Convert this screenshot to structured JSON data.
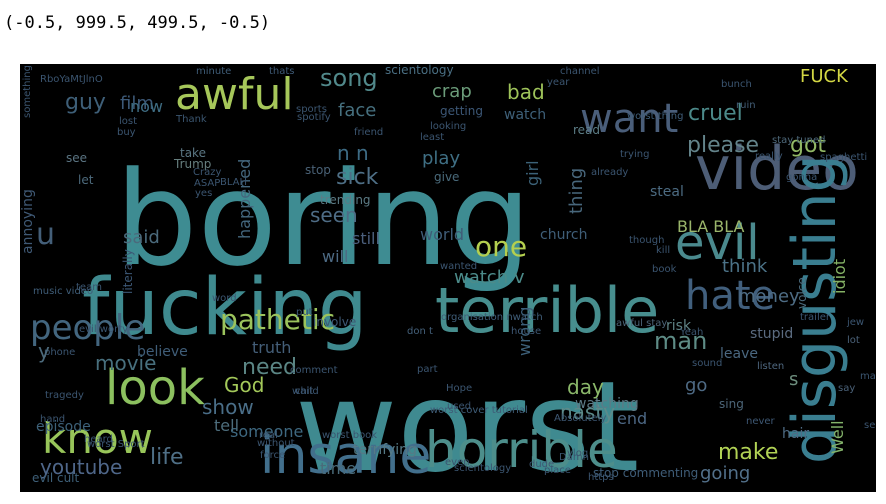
{
  "output": {
    "text": "(-0.5, 999.5, 499.5, -0.5)"
  },
  "wordcloud": {
    "background": "#000000",
    "words": [
      {
        "text": "boring",
        "color": "#3e8c92"
      },
      {
        "text": "worst",
        "color": "#3f8a90"
      },
      {
        "text": "fucking",
        "color": "#3f8a8f"
      },
      {
        "text": "video",
        "color": "#4d5d76"
      },
      {
        "text": "terrible",
        "color": "#478e8e"
      },
      {
        "text": "horrible",
        "color": "#4d8e8b"
      },
      {
        "text": "insane",
        "color": "#426f8c"
      },
      {
        "text": "disgusting",
        "color": "#3a7e90"
      },
      {
        "text": "awful",
        "color": "#a6c75a"
      },
      {
        "text": "look",
        "color": "#8cc05f"
      },
      {
        "text": "know",
        "color": "#98c55a"
      },
      {
        "text": "evil",
        "color": "#4b8a8e"
      },
      {
        "text": "hate",
        "color": "#415f7d"
      },
      {
        "text": "want",
        "color": "#4a5e7a"
      },
      {
        "text": "people",
        "color": "#43667f"
      },
      {
        "text": "pathetic",
        "color": "#9bc35c"
      },
      {
        "text": "one",
        "color": "#b4cf4f"
      },
      {
        "text": "song",
        "color": "#51898b"
      },
      {
        "text": "guy",
        "color": "#3e5f78"
      },
      {
        "text": "film",
        "color": "#3c5876"
      },
      {
        "text": "cruel",
        "color": "#4c8a8a"
      },
      {
        "text": "FUCK",
        "color": "#d3d744"
      },
      {
        "text": "bad",
        "color": "#9ec35a"
      },
      {
        "text": "crap",
        "color": "#6b9b79"
      },
      {
        "text": "face",
        "color": "#46707f"
      },
      {
        "text": "now",
        "color": "#3e6c82"
      },
      {
        "text": "please",
        "color": "#63838a"
      },
      {
        "text": "got",
        "color": "#92b865"
      },
      {
        "text": "sick",
        "color": "#4e6f86"
      },
      {
        "text": "play",
        "color": "#3f6f84"
      },
      {
        "text": "seen",
        "color": "#4e6c85"
      },
      {
        "text": "make",
        "color": "#b1d255"
      },
      {
        "text": "day",
        "color": "#8bb86a"
      },
      {
        "text": "man",
        "color": "#5e8c86"
      },
      {
        "text": "nasty",
        "color": "#5c8a8a"
      },
      {
        "text": "going",
        "color": "#52708a"
      },
      {
        "text": "youtube",
        "color": "#4f678a"
      },
      {
        "text": "life",
        "color": "#4f6f86"
      },
      {
        "text": "need",
        "color": "#5b8685"
      },
      {
        "text": "show",
        "color": "#4a6e88"
      },
      {
        "text": "God",
        "color": "#a3c85a"
      },
      {
        "text": "movie",
        "color": "#48707e"
      },
      {
        "text": "watch v",
        "color": "#4c8b8a"
      },
      {
        "text": "money",
        "color": "#4e6c84"
      },
      {
        "text": "think",
        "color": "#4c7388"
      },
      {
        "text": "thing",
        "color": "#48677c"
      },
      {
        "text": "truth",
        "color": "#445e78"
      },
      {
        "text": "said",
        "color": "#4b6a7c"
      },
      {
        "text": "happened",
        "color": "#44677e"
      },
      {
        "text": "will",
        "color": "#4d6a84"
      },
      {
        "text": "still",
        "color": "#4b5f7c"
      },
      {
        "text": "world",
        "color": "#3f5c77"
      },
      {
        "text": "BLA BLA",
        "color": "#9ab56b"
      },
      {
        "text": "idiot",
        "color": "#85b265"
      },
      {
        "text": "Well",
        "color": "#83b36a"
      },
      {
        "text": "s",
        "color": "#6e8f7e"
      },
      {
        "text": "end",
        "color": "#4d6885"
      },
      {
        "text": "go",
        "color": "#4e6a84"
      },
      {
        "text": "time",
        "color": "#4a6b7a"
      },
      {
        "text": "someone",
        "color": "#3e6880"
      },
      {
        "text": "terrifying",
        "color": "#557a86"
      },
      {
        "text": "tell",
        "color": "#4d6d7c"
      },
      {
        "text": "hair",
        "color": "#4f6c85"
      },
      {
        "text": "episode",
        "color": "#3d6179"
      },
      {
        "text": "believe",
        "color": "#3f5d78"
      },
      {
        "text": "wrong",
        "color": "#3d6079"
      },
      {
        "text": "girl",
        "color": "#3c6278"
      },
      {
        "text": "n n",
        "color": "#3d6b84"
      },
      {
        "text": "steal",
        "color": "#4c6b82"
      },
      {
        "text": "risk",
        "color": "#5e8385"
      },
      {
        "text": "stupid",
        "color": "#5b6b80"
      },
      {
        "text": "leave",
        "color": "#4a6780"
      },
      {
        "text": "watching",
        "color": "#5d7a86"
      },
      {
        "text": "getting",
        "color": "#3c5776"
      },
      {
        "text": "watch",
        "color": "#3e6079"
      },
      {
        "text": "church",
        "color": "#3f5e78"
      },
      {
        "text": "read",
        "color": "#5c7d86"
      },
      {
        "text": "scientology",
        "color": "#4a6f83"
      },
      {
        "text": "annoying",
        "color": "#3f5975"
      },
      {
        "text": "literally",
        "color": "#3c5775"
      },
      {
        "text": "trending",
        "color": "#5c7b85"
      },
      {
        "text": "give",
        "color": "#4a6b7c"
      },
      {
        "text": "stop",
        "color": "#4a6277"
      },
      {
        "text": "see",
        "color": "#5b7583"
      },
      {
        "text": "let",
        "color": "#4d6a7c"
      },
      {
        "text": "take",
        "color": "#5a7683"
      },
      {
        "text": "Trump",
        "color": "#667e7e"
      },
      {
        "text": "sing",
        "color": "#4c6578"
      },
      {
        "text": "listen",
        "color": "#4f6880"
      },
      {
        "text": "lot",
        "color": "#4b6279"
      },
      {
        "text": "say",
        "color": "#4b6279"
      },
      {
        "text": "never",
        "color": "#3e5874"
      },
      {
        "text": "evil cult",
        "color": "#3e6079"
      },
      {
        "text": "minute",
        "color": "#3f5d78"
      },
      {
        "text": "ruin",
        "color": "#435e77"
      },
      {
        "text": "thats",
        "color": "#3e5a76"
      },
      {
        "text": "voice",
        "color": "#4b6a7c"
      },
      {
        "text": "Thank",
        "color": "#3b5670"
      },
      {
        "text": "worst thing",
        "color": "#3f5d78"
      },
      {
        "text": "music video",
        "color": "#3f5d78"
      },
      {
        "text": "organisation nwatch",
        "color": "#3f5d78"
      },
      {
        "text": "worst cover tutorial",
        "color": "#3f5d78"
      },
      {
        "text": "stop commenting",
        "color": "#3f5d78"
      },
      {
        "text": "involve",
        "color": "#3e5874"
      },
      {
        "text": "don t",
        "color": "#44607a"
      },
      {
        "text": "stay tuned",
        "color": "#4f6a7c"
      },
      {
        "text": "awful stay",
        "color": "#4c6478"
      },
      {
        "text": "Absolutely",
        "color": "#3e5874"
      },
      {
        "text": "house",
        "color": "#3e5874"
      },
      {
        "text": "something",
        "color": "#3b5570"
      },
      {
        "text": "phone",
        "color": "#3b5570"
      },
      {
        "text": "tragedy",
        "color": "#3b5570"
      },
      {
        "text": "hand",
        "color": "#3b5570"
      },
      {
        "text": "real",
        "color": "#3e5874"
      },
      {
        "text": "dude",
        "color": "#3e5874"
      },
      {
        "text": "place",
        "color": "#3b5570"
      },
      {
        "text": "https",
        "color": "#3b5570"
      },
      {
        "text": "u",
        "color": "#445f79"
      },
      {
        "text": "y",
        "color": "#4c6a7c"
      },
      {
        "text": "RboYaMtJlnO",
        "color": "#3b5570"
      },
      {
        "text": "friend",
        "color": "#3b5570"
      },
      {
        "text": "Hope",
        "color": "#3b5570"
      },
      {
        "text": "part",
        "color": "#3b5570"
      },
      {
        "text": "comment",
        "color": "#3b5570"
      },
      {
        "text": "trailer",
        "color": "#3b5570"
      },
      {
        "text": "bunch",
        "color": "#3b5570"
      },
      {
        "text": "already",
        "color": "#3b5570"
      },
      {
        "text": "spaghetti",
        "color": "#3b5570"
      },
      {
        "text": "trying",
        "color": "#3b5570"
      },
      {
        "text": "sound",
        "color": "#3b5570"
      },
      {
        "text": "used",
        "color": "#3b5570"
      },
      {
        "text": "Damn",
        "color": "#3b5570"
      },
      {
        "text": "made",
        "color": "#3b5570"
      },
      {
        "text": "jew",
        "color": "#3b5570"
      },
      {
        "text": "force",
        "color": "#3b5570"
      },
      {
        "text": "vlog",
        "color": "#3b5570"
      },
      {
        "text": "Yeah",
        "color": "#3b5570"
      },
      {
        "text": "book",
        "color": "#3b5570"
      },
      {
        "text": "seeing",
        "color": "#3b5570"
      },
      {
        "text": "even",
        "color": "#3b5570"
      },
      {
        "text": "scientology",
        "color": "#3b5570"
      },
      {
        "text": "without",
        "color": "#3b5570"
      },
      {
        "text": "worst book",
        "color": "#3b5570"
      },
      {
        "text": "worst Sport",
        "color": "#3b5570"
      },
      {
        "text": "heard",
        "color": "#3b5570"
      },
      {
        "text": "wanted",
        "color": "#3b5570"
      },
      {
        "text": "put",
        "color": "#3b5570"
      },
      {
        "text": "word",
        "color": "#3b5570"
      },
      {
        "text": "team",
        "color": "#3b5570"
      },
      {
        "text": "evil worty",
        "color": "#3b5570"
      },
      {
        "text": "lost",
        "color": "#3b5570"
      },
      {
        "text": "buy",
        "color": "#3b5570"
      },
      {
        "text": "really",
        "color": "#3b5570"
      },
      {
        "text": "gonna",
        "color": "#3b5570"
      },
      {
        "text": "though",
        "color": "#3b5570"
      },
      {
        "text": "kill",
        "color": "#3b5570"
      },
      {
        "text": "ASAP",
        "color": "#3b5570"
      },
      {
        "text": "BLAH",
        "color": "#3b5570"
      },
      {
        "text": "yes",
        "color": "#3b5570"
      },
      {
        "text": "Crazy",
        "color": "#3b5570"
      },
      {
        "text": "spotify",
        "color": "#3b5570"
      },
      {
        "text": "sports",
        "color": "#3b5570"
      },
      {
        "text": "channel",
        "color": "#3b5570"
      },
      {
        "text": "year",
        "color": "#3b5570"
      },
      {
        "text": "child",
        "color": "#3b5570"
      },
      {
        "text": "wait",
        "color": "#3b5570"
      },
      {
        "text": "least",
        "color": "#3b5570"
      },
      {
        "text": "looking",
        "color": "#3b5570"
      }
    ]
  }
}
